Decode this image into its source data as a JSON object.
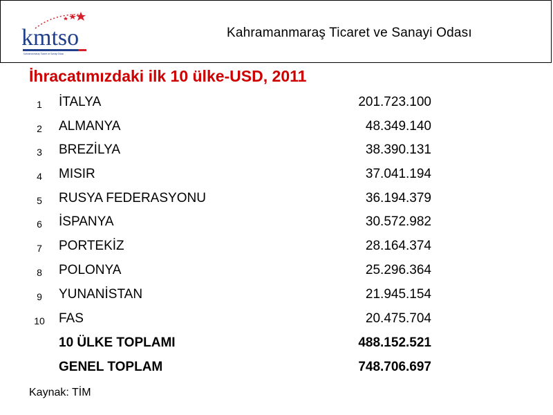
{
  "header": {
    "logo_text": "kmtso",
    "logo_tagline": "Kahramanmaraş Ticaret ve Sanayi Odası",
    "org_name": "Kahramanmaraş Ticaret ve Sanayi Odası"
  },
  "colors": {
    "title": "#cc0000",
    "logo_blue": "#1f3f8a",
    "logo_red": "#d4202a"
  },
  "title": "İhracatımızdaki ilk 10 ülke-USD, 2011",
  "rows": [
    {
      "rank": "1",
      "country": "İTALYA",
      "value": "201.723.100"
    },
    {
      "rank": "2",
      "country": "ALMANYA",
      "value": "48.349.140"
    },
    {
      "rank": "3",
      "country": "BREZİLYA",
      "value": "38.390.131"
    },
    {
      "rank": "4",
      "country": "MISIR",
      "value": "37.041.194"
    },
    {
      "rank": "5",
      "country": "RUSYA FEDERASYONU",
      "value": "36.194.379"
    },
    {
      "rank": "6",
      "country": "İSPANYA",
      "value": "30.572.982"
    },
    {
      "rank": "7",
      "country": "PORTEKİZ",
      "value": "28.164.374"
    },
    {
      "rank": "8",
      "country": "POLONYA",
      "value": "25.296.364"
    },
    {
      "rank": "9",
      "country": "YUNANİSTAN",
      "value": "21.945.154"
    },
    {
      "rank": "10",
      "country": "FAS",
      "value": "20.475.704"
    }
  ],
  "totals": [
    {
      "label": "10 ÜLKE TOPLAMI",
      "value": "488.152.521"
    },
    {
      "label": "GENEL TOPLAM",
      "value": "748.706.697"
    }
  ],
  "source": "Kaynak: TİM"
}
